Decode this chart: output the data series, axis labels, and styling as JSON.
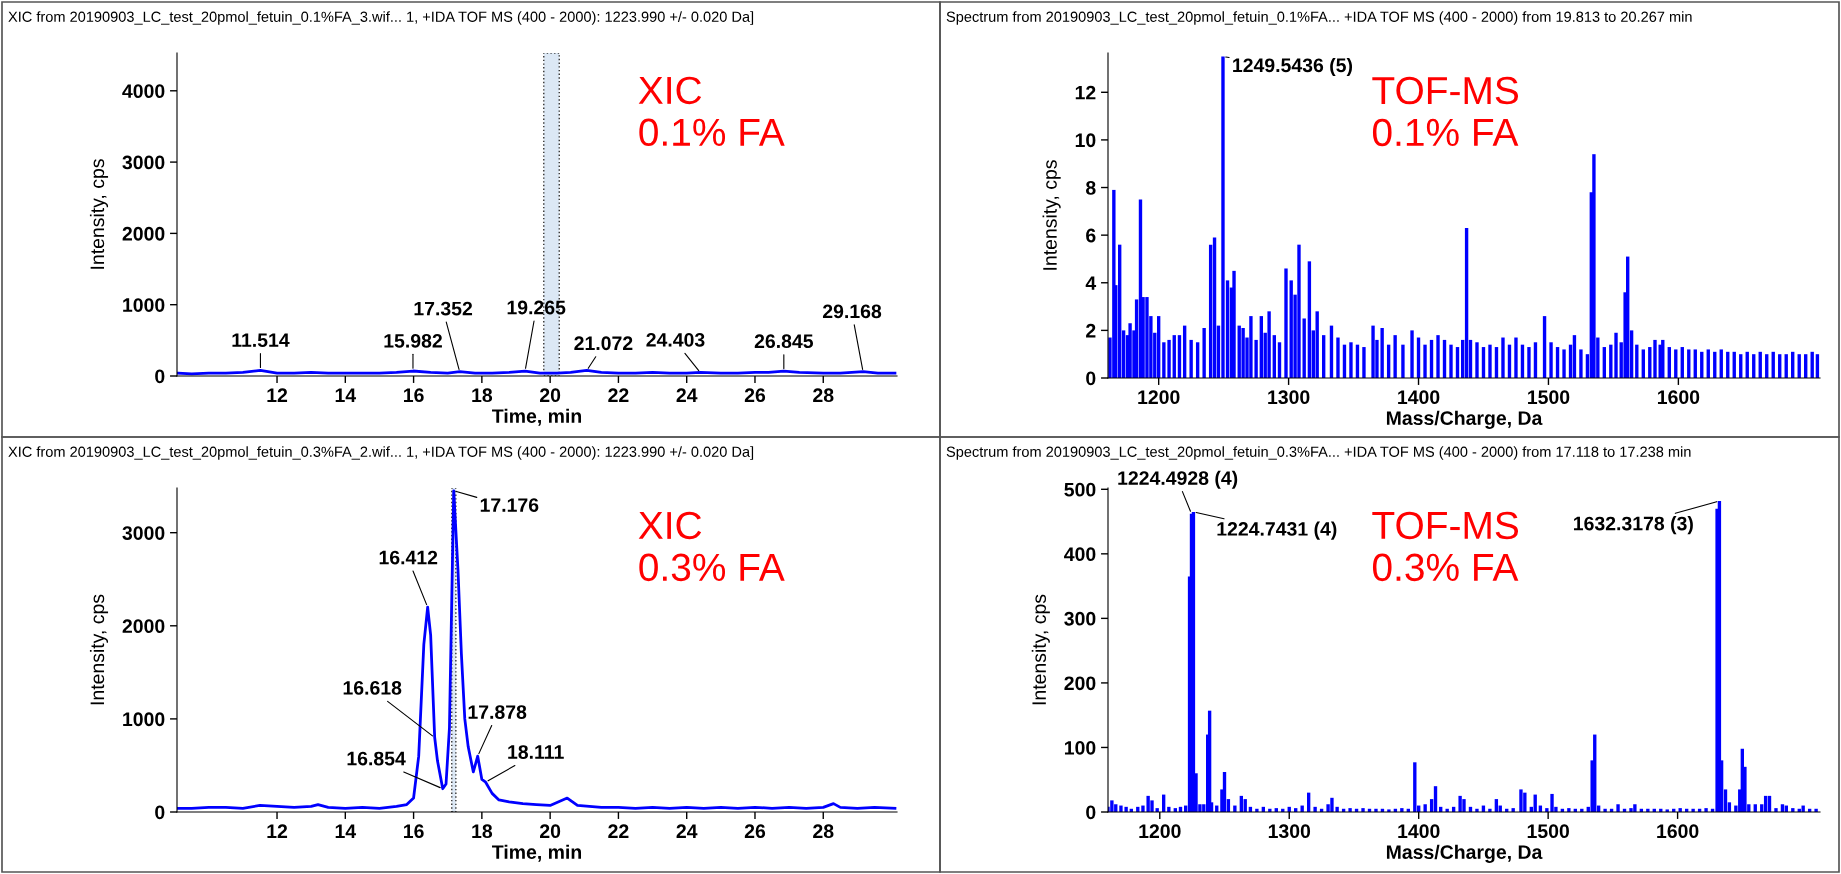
{
  "chart_data": [
    {
      "type": "line",
      "title": "XIC from 20190903_LC_test_20pmol_fetuin_0.1%FA_3.wif... 1, +IDA TOF MS (400 - 2000): 1223.990 +/- 0.020 Da]",
      "xlabel": "Time, min",
      "ylabel": "Intensity, cps",
      "xlim": [
        9.07,
        30.16
      ],
      "xticks": [
        12,
        14,
        16,
        18,
        20,
        22,
        24,
        26,
        28
      ],
      "ylim": [
        0,
        4530
      ],
      "yticks": [
        0,
        1000,
        2000,
        3000,
        4000
      ],
      "x": [
        9.1,
        9.5,
        10,
        10.5,
        11,
        11.514,
        12,
        12.5,
        13,
        13.5,
        14,
        14.5,
        15,
        15.5,
        15.982,
        16.5,
        17,
        17.352,
        17.8,
        18.3,
        18.8,
        19.265,
        19.7,
        20.2,
        20.6,
        21.072,
        21.5,
        22,
        22.5,
        23,
        23.5,
        24,
        24.403,
        25,
        25.5,
        26,
        26.4,
        26.845,
        27.3,
        28,
        28.5,
        29.168,
        29.6,
        30.1
      ],
      "series": [
        {
          "color": "#0000ff",
          "values": [
            40,
            30,
            40,
            40,
            50,
            80,
            40,
            40,
            50,
            40,
            40,
            40,
            40,
            50,
            70,
            50,
            40,
            60,
            40,
            40,
            50,
            70,
            40,
            40,
            50,
            80,
            50,
            40,
            40,
            50,
            40,
            40,
            50,
            40,
            40,
            50,
            50,
            70,
            50,
            40,
            40,
            60,
            40,
            40
          ]
        }
      ],
      "bands": [
        {
          "axis": "x",
          "from": 19.813,
          "to": 20.267,
          "color": "#dce8f5"
        }
      ],
      "annotations": [
        {
          "text": "11.514",
          "x": 11.514,
          "y": 80
        },
        {
          "text": "15.982",
          "x": 15.982,
          "y": 70
        },
        {
          "text": "17.352",
          "x": 17.352,
          "y": 55
        },
        {
          "text": "19.265",
          "x": 19.265,
          "y": 70
        },
        {
          "text": "21.072",
          "x": 21.072,
          "y": 75
        },
        {
          "text": "24.403",
          "x": 24.403,
          "y": 45
        },
        {
          "text": "26.845",
          "x": 26.845,
          "y": 65
        },
        {
          "text": "29.168",
          "x": 29.168,
          "y": 55
        },
        "XIC\n0.1% FA"
      ]
    },
    {
      "type": "bar",
      "title": "Spectrum from 20190903_LC_test_20pmol_fetuin_0.1%FA... +IDA TOF MS (400 - 2000) from 19.813 to 20.267 min",
      "xlabel": "Mass/Charge, Da",
      "ylabel": "Intensity, cps",
      "xlim": [
        1161,
        1709
      ],
      "xticks": [
        1200,
        1300,
        1400,
        1500,
        1600
      ],
      "ylim": [
        0,
        13.65
      ],
      "yticks": [
        0,
        2,
        4,
        6,
        8,
        10,
        12
      ],
      "x": [
        1162.5,
        1165.5,
        1167,
        1170,
        1173,
        1176,
        1178,
        1181,
        1183,
        1186,
        1188,
        1191,
        1194,
        1197,
        1200,
        1204,
        1208,
        1212,
        1216,
        1220,
        1225,
        1230,
        1235,
        1240,
        1243,
        1246,
        1249.5,
        1253,
        1256,
        1258,
        1262,
        1265,
        1268,
        1271,
        1275,
        1279,
        1282,
        1285,
        1289,
        1293,
        1298,
        1302,
        1305,
        1308,
        1312,
        1316,
        1319,
        1322,
        1327,
        1333,
        1338,
        1343,
        1348,
        1353,
        1358,
        1365,
        1368,
        1372,
        1377,
        1382,
        1388,
        1395,
        1400,
        1405,
        1410,
        1415,
        1420,
        1425,
        1430,
        1434,
        1437,
        1440,
        1445,
        1450,
        1455,
        1460,
        1465,
        1470,
        1475,
        1480,
        1485,
        1490,
        1497,
        1502,
        1507,
        1512,
        1517,
        1520,
        1525,
        1530,
        1533,
        1535,
        1538,
        1543,
        1548,
        1552,
        1556,
        1559,
        1561,
        1564,
        1568,
        1573,
        1578,
        1582,
        1586,
        1588,
        1593,
        1598,
        1603,
        1608,
        1613,
        1618,
        1623,
        1628,
        1633,
        1638,
        1643,
        1648,
        1653,
        1658,
        1663,
        1668,
        1673,
        1678,
        1683,
        1688,
        1693,
        1698,
        1703,
        1707
      ],
      "series": [
        {
          "color": "#0000ff",
          "values": [
            1.7,
            7.9,
            3.9,
            5.6,
            2.0,
            1.8,
            2.3,
            2.0,
            3.3,
            7.5,
            3.4,
            3.4,
            2.6,
            1.9,
            2.6,
            1.5,
            1.6,
            1.8,
            1.8,
            2.2,
            1.6,
            1.5,
            2.1,
            5.6,
            5.9,
            2.2,
            13.5,
            4.1,
            3.8,
            4.5,
            2.2,
            2.1,
            1.7,
            2.6,
            1.6,
            2.6,
            1.9,
            2.8,
            1.8,
            1.5,
            4.6,
            4.1,
            3.5,
            5.6,
            2.5,
            4.9,
            2.0,
            2.8,
            1.8,
            2.2,
            1.7,
            1.4,
            1.5,
            1.4,
            1.3,
            2.2,
            1.6,
            2.1,
            1.4,
            1.8,
            1.4,
            2.0,
            1.7,
            1.4,
            1.6,
            1.8,
            1.6,
            1.4,
            1.3,
            1.6,
            6.3,
            1.6,
            1.5,
            1.3,
            1.4,
            1.3,
            1.7,
            1.4,
            1.7,
            1.4,
            1.3,
            1.5,
            2.6,
            1.5,
            1.3,
            1.2,
            1.4,
            1.8,
            1.2,
            1.0,
            7.8,
            9.4,
            1.7,
            1.3,
            1.4,
            1.9,
            1.5,
            3.6,
            5.1,
            2.0,
            1.4,
            1.2,
            1.3,
            1.6,
            1.4,
            1.6,
            1.3,
            1.2,
            1.3,
            1.2,
            1.2,
            1.1,
            1.2,
            1.1,
            1.2,
            1.1,
            1.1,
            1.0,
            1.1,
            1.0,
            1.1,
            1.0,
            1.1,
            1.0,
            1.0,
            1.1,
            1.0,
            1.0,
            1.1,
            1.0
          ]
        }
      ],
      "annotations": [
        {
          "text": "1249.5436 (5)",
          "x": 1249.5,
          "y": 13.5
        },
        "TOF-MS\n0.1% FA"
      ]
    },
    {
      "type": "line",
      "title": "XIC from 20190903_LC_test_20pmol_fetuin_0.3%FA_2.wif... 1, +IDA TOF MS (400 - 2000): 1223.990 +/- 0.020 Da]",
      "xlabel": "Time, min",
      "ylabel": "Intensity, cps",
      "xlim": [
        9.07,
        30.16
      ],
      "xticks": [
        12,
        14,
        16,
        18,
        20,
        22,
        24,
        26,
        28
      ],
      "ylim": [
        0,
        3480
      ],
      "yticks": [
        0,
        1000,
        2000,
        3000
      ],
      "x": [
        9.1,
        9.5,
        10,
        10.5,
        11,
        11.5,
        12,
        12.5,
        13,
        13.2,
        13.5,
        14,
        14.5,
        15,
        15.5,
        15.8,
        16.0,
        16.15,
        16.3,
        16.412,
        16.5,
        16.618,
        16.7,
        16.854,
        16.95,
        17.05,
        17.176,
        17.3,
        17.4,
        17.5,
        17.6,
        17.75,
        17.878,
        18.0,
        18.111,
        18.3,
        18.5,
        18.8,
        19.2,
        19.6,
        20.0,
        20.5,
        20.8,
        21.5,
        22,
        22.5,
        23,
        23.5,
        24,
        24.5,
        25,
        25.5,
        26,
        26.5,
        27,
        27.5,
        28,
        28.3,
        28.5,
        29,
        29.5,
        30.1
      ],
      "series": [
        {
          "color": "#0000ff",
          "values": [
            40,
            40,
            50,
            50,
            40,
            70,
            60,
            50,
            60,
            80,
            50,
            40,
            50,
            40,
            60,
            80,
            150,
            600,
            1800,
            2200,
            1900,
            800,
            550,
            250,
            300,
            900,
            3450,
            2600,
            1700,
            1000,
            700,
            430,
            600,
            350,
            320,
            200,
            130,
            110,
            90,
            80,
            70,
            150,
            70,
            50,
            50,
            40,
            50,
            40,
            50,
            40,
            50,
            40,
            50,
            40,
            50,
            40,
            50,
            90,
            50,
            40,
            50,
            40
          ]
        }
      ],
      "bands": [
        {
          "axis": "x",
          "from": 17.118,
          "to": 17.238,
          "color": "#dce8f5"
        }
      ],
      "annotations": [
        {
          "text": "17.176",
          "x": 17.176,
          "y": 3450
        },
        {
          "text": "16.412",
          "x": 16.412,
          "y": 2200
        },
        {
          "text": "16.618",
          "x": 16.618,
          "y": 800
        },
        {
          "text": "16.854",
          "x": 16.854,
          "y": 250
        },
        {
          "text": "17.878",
          "x": 17.878,
          "y": 600
        },
        {
          "text": "18.111",
          "x": 18.111,
          "y": 320
        },
        "XIC\n0.3% FA"
      ]
    },
    {
      "type": "bar",
      "title": "Spectrum from 20190903_LC_test_20pmol_fetuin_0.3%FA... +IDA TOF MS (400 - 2000) from 17.118 to 17.238 min",
      "xlabel": "Mass/Charge, Da",
      "ylabel": "Intensity, cps",
      "xlim": [
        1160,
        1710
      ],
      "xticks": [
        1200,
        1300,
        1400,
        1500,
        1600
      ],
      "ylim": [
        0,
        502
      ],
      "yticks": [
        0,
        100,
        200,
        300,
        400,
        500
      ],
      "x": [
        1160,
        1163,
        1166,
        1170,
        1174,
        1178,
        1183,
        1187,
        1191,
        1194,
        1198,
        1203,
        1207,
        1212,
        1216,
        1220,
        1223,
        1224.5,
        1226,
        1228,
        1231,
        1234,
        1237,
        1238.5,
        1240,
        1244,
        1248,
        1250,
        1253,
        1258,
        1263,
        1266,
        1270,
        1275,
        1280,
        1285,
        1290,
        1295,
        1300,
        1305,
        1310,
        1315,
        1320,
        1325,
        1330,
        1333,
        1337,
        1342,
        1347,
        1352,
        1357,
        1362,
        1367,
        1372,
        1377,
        1382,
        1387,
        1392,
        1397,
        1400,
        1405,
        1410,
        1413,
        1417,
        1422,
        1427,
        1432,
        1435,
        1440,
        1445,
        1450,
        1455,
        1460,
        1463,
        1468,
        1473,
        1479,
        1482,
        1487,
        1490,
        1494,
        1499,
        1503,
        1506,
        1511,
        1516,
        1521,
        1526,
        1531,
        1534,
        1536,
        1539,
        1544,
        1549,
        1554,
        1559,
        1564,
        1567,
        1572,
        1577,
        1582,
        1587,
        1592,
        1597,
        1602,
        1607,
        1612,
        1617,
        1622,
        1627,
        1630.5,
        1632.3,
        1634,
        1637,
        1640,
        1645,
        1648,
        1650,
        1652,
        1655,
        1660,
        1665,
        1668,
        1671,
        1676,
        1681,
        1684,
        1689,
        1694,
        1697,
        1702,
        1707
      ],
      "series": [
        {
          "color": "#0000ff",
          "values": [
            8,
            18,
            12,
            10,
            8,
            5,
            8,
            10,
            25,
            18,
            6,
            27,
            8,
            6,
            8,
            10,
            365,
            462,
            465,
            60,
            12,
            12,
            120,
            157,
            15,
            10,
            35,
            62,
            20,
            10,
            25,
            20,
            8,
            5,
            8,
            5,
            6,
            5,
            8,
            6,
            10,
            30,
            8,
            5,
            12,
            22,
            8,
            5,
            6,
            5,
            6,
            5,
            5,
            5,
            4,
            5,
            6,
            5,
            77,
            10,
            12,
            20,
            40,
            8,
            5,
            8,
            25,
            20,
            8,
            5,
            10,
            5,
            20,
            10,
            5,
            6,
            35,
            30,
            8,
            27,
            10,
            6,
            28,
            8,
            5,
            6,
            5,
            5,
            8,
            80,
            120,
            10,
            5,
            5,
            12,
            5,
            6,
            12,
            5,
            5,
            5,
            5,
            4,
            5,
            6,
            5,
            5,
            5,
            6,
            5,
            470,
            482,
            80,
            35,
            15,
            10,
            35,
            98,
            70,
            12,
            12,
            12,
            25,
            25,
            6,
            12,
            10,
            6,
            5,
            10,
            5,
            5
          ]
        }
      ],
      "annotations": [
        {
          "text": "1224.4928 (4)",
          "x": 1224.5,
          "y": 462
        },
        {
          "text": "1224.7431 (4)",
          "x": 1226,
          "y": 465
        },
        {
          "text": "1632.3178 (3)",
          "x": 1632.3,
          "y": 482
        },
        "TOF-MS\n0.3% FA"
      ]
    }
  ]
}
